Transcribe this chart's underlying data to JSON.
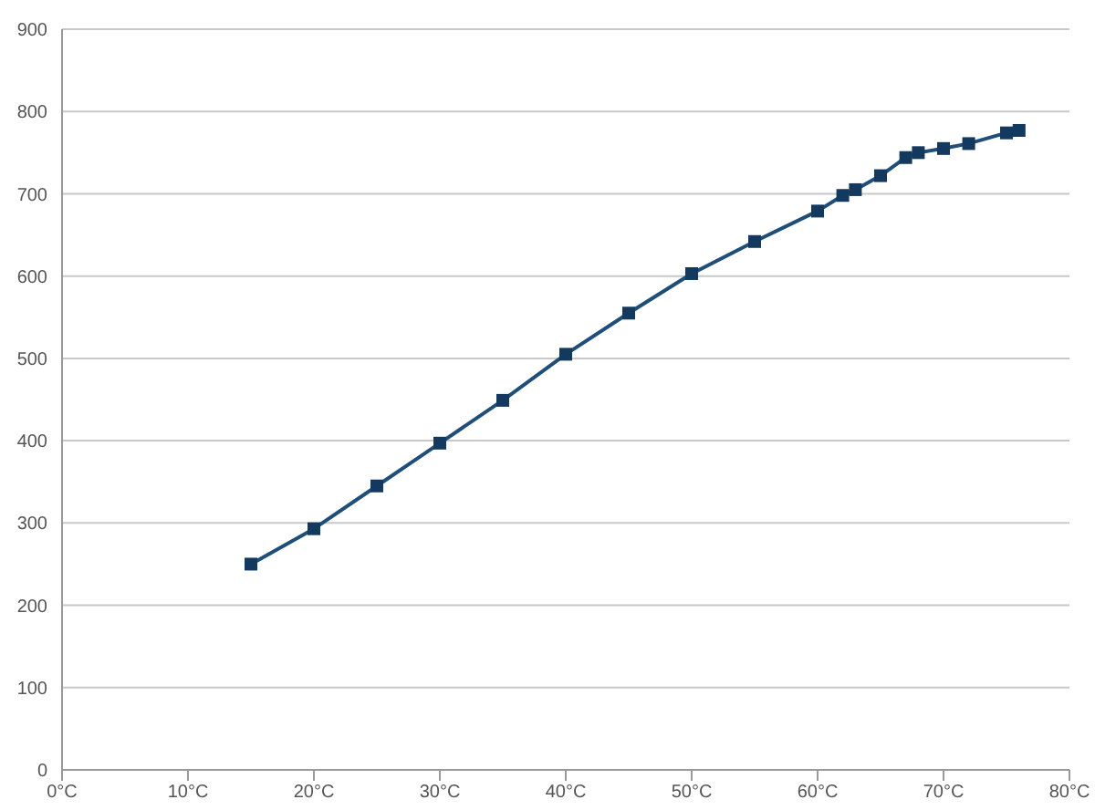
{
  "chart_data": {
    "type": "line",
    "x": [
      15,
      20,
      25,
      30,
      35,
      40,
      45,
      50,
      55,
      60,
      62,
      63,
      65,
      67,
      68,
      70,
      72,
      75,
      76
    ],
    "series": [
      {
        "color": "#1f4e79",
        "values": [
          250,
          293,
          345,
          397,
          449,
          505,
          555,
          603,
          642,
          679,
          698,
          705,
          722,
          744,
          750,
          755,
          761,
          774,
          777
        ]
      }
    ],
    "xlim": [
      0,
      80
    ],
    "xticks": [
      {
        "value": 0,
        "label": "0°C"
      },
      {
        "value": 10,
        "label": "10°C"
      },
      {
        "value": 20,
        "label": "20°C"
      },
      {
        "value": 30,
        "label": "30°C"
      },
      {
        "value": 40,
        "label": "40°C"
      },
      {
        "value": 50,
        "label": "50°C"
      },
      {
        "value": 60,
        "label": "60°C"
      },
      {
        "value": 70,
        "label": "70°C"
      },
      {
        "value": 80,
        "label": "80°C"
      }
    ],
    "ylim": [
      0,
      900
    ],
    "yticks": [
      0,
      100,
      200,
      300,
      400,
      500,
      600,
      700,
      800,
      900
    ],
    "grid": "y",
    "marker": "square",
    "line_style": "solid"
  }
}
